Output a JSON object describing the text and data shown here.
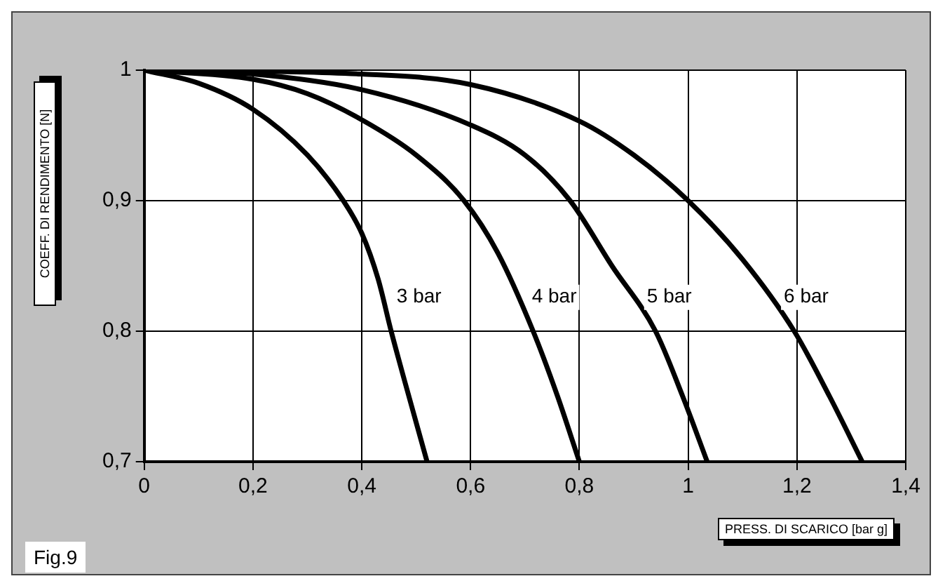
{
  "chart_data": {
    "type": "line",
    "xlabel": "PRESS. DI SCARICO [bar g]",
    "ylabel": "COEFF. DI RENDIMENTO [N]",
    "annotations": [
      "Fig.9"
    ],
    "xlim": [
      0,
      1.4
    ],
    "xticks": [
      0,
      {
        "value": 0.2,
        "label": "0,2"
      },
      {
        "value": 0.4,
        "label": "0,4"
      },
      {
        "value": 0.6,
        "label": "0,6"
      },
      {
        "value": 0.8,
        "label": "0,8"
      },
      1,
      {
        "value": 1.2,
        "label": "1,2"
      },
      {
        "value": 1.4,
        "label": "1,4"
      }
    ],
    "ylim": [
      0.7,
      1
    ],
    "yticks": [
      {
        "value": 0.7,
        "label": "0,7"
      },
      {
        "value": 0.8,
        "label": "0,8"
      },
      {
        "value": 0.9,
        "label": "0,9"
      },
      1
    ],
    "grid": true,
    "legend": false,
    "marker": "none",
    "line_style": "solid",
    "series": [
      {
        "name": "3 bar",
        "color": "#000000",
        "x": [
          0,
          0.1,
          0.2,
          0.3,
          0.366,
          0.4,
          0.43,
          0.454,
          0.48,
          0.5,
          0.52
        ],
        "values": [
          1,
          0.99,
          0.97,
          0.935,
          0.9,
          0.875,
          0.84,
          0.8,
          0.76,
          0.73,
          0.7
        ]
      },
      {
        "name": "4 bar",
        "color": "#000000",
        "x": [
          0,
          0.2,
          0.3,
          0.4,
          0.5,
          0.588,
          0.65,
          0.715,
          0.76,
          0.8
        ],
        "values": [
          1,
          0.993,
          0.982,
          0.962,
          0.935,
          0.9,
          0.86,
          0.8,
          0.75,
          0.7
        ]
      },
      {
        "name": "5 bar",
        "color": "#000000",
        "x": [
          0,
          0.2,
          0.4,
          0.6,
          0.7,
          0.783,
          0.86,
          0.94,
          0.99,
          1.035
        ],
        "values": [
          1,
          0.997,
          0.985,
          0.958,
          0.935,
          0.9,
          0.85,
          0.8,
          0.75,
          0.7
        ]
      },
      {
        "name": "6 bar",
        "color": "#000000",
        "x": [
          0,
          0.4,
          0.6,
          0.8,
          0.9,
          1,
          1.1,
          1.195,
          1.26,
          1.32
        ],
        "values": [
          1,
          0.997,
          0.989,
          0.961,
          0.935,
          0.9,
          0.855,
          0.8,
          0.75,
          0.7
        ]
      }
    ]
  }
}
